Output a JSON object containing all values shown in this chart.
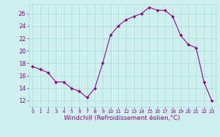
{
  "x": [
    0,
    1,
    2,
    3,
    4,
    5,
    6,
    7,
    8,
    9,
    10,
    11,
    12,
    13,
    14,
    15,
    16,
    17,
    18,
    19,
    20,
    21,
    22,
    23
  ],
  "y": [
    17.5,
    17.0,
    16.5,
    15.0,
    15.0,
    14.0,
    13.5,
    12.5,
    14.0,
    18.0,
    22.5,
    24.0,
    25.0,
    25.5,
    26.0,
    27.0,
    26.5,
    26.5,
    25.5,
    22.5,
    21.0,
    20.5,
    15.0,
    12.0
  ],
  "line_color": "#880088",
  "marker": "D",
  "marker_size": 2,
  "bg_color": "#d0f0f0",
  "grid_color": "#aadddd",
  "xlabel": "Windchill (Refroidissement éolien,°C)",
  "xlabel_color": "#880088",
  "tick_color": "#880088",
  "ylim": [
    11,
    27.5
  ],
  "xlim": [
    -0.5,
    23.5
  ],
  "yticks": [
    12,
    14,
    16,
    18,
    20,
    22,
    24,
    26
  ],
  "xticks": [
    0,
    1,
    2,
    3,
    4,
    5,
    6,
    7,
    8,
    9,
    10,
    11,
    12,
    13,
    14,
    15,
    16,
    17,
    18,
    19,
    20,
    21,
    22,
    23
  ],
  "ytick_fontsize": 6,
  "xtick_fontsize": 5,
  "xlabel_fontsize": 6.5
}
